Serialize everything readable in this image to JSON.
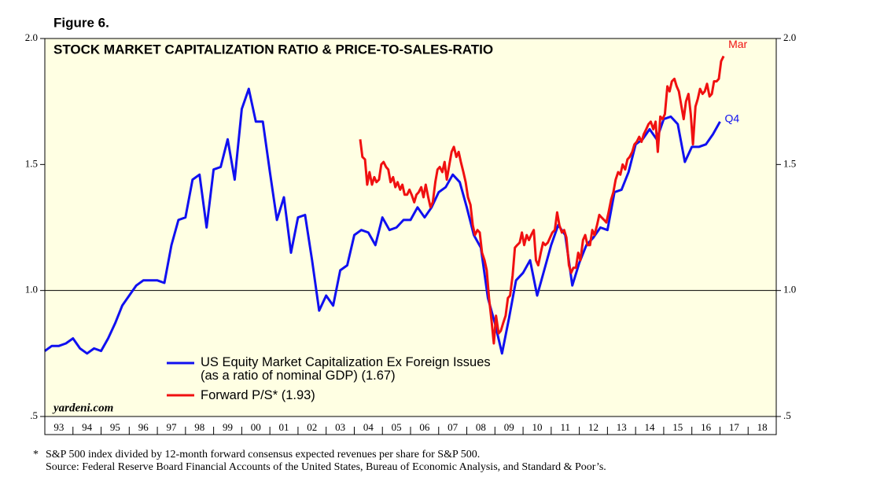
{
  "chart_data": {
    "type": "line",
    "figure_label": "Figure 6.",
    "title": "STOCK MARKET CAPITALIZATION RATIO & PRICE-TO-SALES-RATIO",
    "watermark": "yardeni.com",
    "footnote_marker": "*",
    "footnote": "S&P 500 index divided by 12-month forward consensus expected revenues per share for S&P 500.",
    "source": "Source: Federal Reserve Board Financial Accounts of the United States, Bureau of Economic Analysis, and Standard & Poor’s.",
    "xlim": [
      1993,
      2019
    ],
    "xticks": [
      {
        "value": 1993,
        "label": "93"
      },
      {
        "value": 1994,
        "label": "94"
      },
      {
        "value": 1995,
        "label": "95"
      },
      {
        "value": 1996,
        "label": "96"
      },
      {
        "value": 1997,
        "label": "97"
      },
      {
        "value": 1998,
        "label": "98"
      },
      {
        "value": 1999,
        "label": "99"
      },
      {
        "value": 2000,
        "label": "00"
      },
      {
        "value": 2001,
        "label": "01"
      },
      {
        "value": 2002,
        "label": "02"
      },
      {
        "value": 2003,
        "label": "03"
      },
      {
        "value": 2004,
        "label": "04"
      },
      {
        "value": 2005,
        "label": "05"
      },
      {
        "value": 2006,
        "label": "06"
      },
      {
        "value": 2007,
        "label": "07"
      },
      {
        "value": 2008,
        "label": "08"
      },
      {
        "value": 2009,
        "label": "09"
      },
      {
        "value": 2010,
        "label": "10"
      },
      {
        "value": 2011,
        "label": "11"
      },
      {
        "value": 2012,
        "label": "12"
      },
      {
        "value": 2013,
        "label": "13"
      },
      {
        "value": 2014,
        "label": "14"
      },
      {
        "value": 2015,
        "label": "15"
      },
      {
        "value": 2016,
        "label": "16"
      },
      {
        "value": 2017,
        "label": "17"
      },
      {
        "value": 2018,
        "label": "18"
      }
    ],
    "ylim": [
      0.5,
      2.0
    ],
    "yticks": [
      {
        "value": 2.0,
        "label": "2.0"
      },
      {
        "value": 1.5,
        "label": "1.5"
      },
      {
        "value": 1.0,
        "label": "1.0"
      },
      {
        "value": 0.5,
        "label": ".5"
      }
    ],
    "y2lim": [
      0.5,
      2.0
    ],
    "y2ticks": [
      {
        "value": 2.0,
        "label": "2.0"
      },
      {
        "value": 1.5,
        "label": "1.5"
      },
      {
        "value": 1.0,
        "label": "1.0"
      },
      {
        "value": 0.5,
        "label": ".5"
      }
    ],
    "reference_line": 1.0,
    "background": "#ffffe3",
    "series": [
      {
        "name": "US Equity Market Capitalization Ex Foreign Issues\n(as a ratio of nominal GDP) (1.67)",
        "end_label": "Q4",
        "color": "#1010f0",
        "x": [
          1993,
          1993.25,
          1993.5,
          1993.75,
          1994,
          1994.25,
          1994.5,
          1994.75,
          1995,
          1995.25,
          1995.5,
          1995.75,
          1996,
          1996.25,
          1996.5,
          1996.75,
          1997,
          1997.25,
          1997.5,
          1997.75,
          1998,
          1998.25,
          1998.5,
          1998.75,
          1999,
          1999.25,
          1999.5,
          1999.75,
          2000,
          2000.25,
          2000.5,
          2000.75,
          2001,
          2001.25,
          2001.5,
          2001.75,
          2002,
          2002.25,
          2002.5,
          2002.75,
          2003,
          2003.25,
          2003.5,
          2003.75,
          2004,
          2004.25,
          2004.5,
          2004.75,
          2005,
          2005.25,
          2005.5,
          2005.75,
          2006,
          2006.25,
          2006.5,
          2006.75,
          2007,
          2007.25,
          2007.5,
          2007.75,
          2008,
          2008.25,
          2008.5,
          2008.75,
          2009,
          2009.25,
          2009.5,
          2009.75,
          2010,
          2010.25,
          2010.5,
          2010.75,
          2011,
          2011.25,
          2011.5,
          2011.75,
          2012,
          2012.25,
          2012.5,
          2012.75,
          2013,
          2013.25,
          2013.5,
          2013.75,
          2014,
          2014.25,
          2014.5,
          2014.75,
          2015,
          2015.25,
          2015.5,
          2015.75,
          2016,
          2016.25,
          2016.5,
          2016.75,
          2017
        ],
        "values": [
          0.76,
          0.78,
          0.78,
          0.79,
          0.81,
          0.77,
          0.75,
          0.77,
          0.76,
          0.81,
          0.87,
          0.94,
          0.98,
          1.02,
          1.04,
          1.04,
          1.04,
          1.03,
          1.18,
          1.28,
          1.29,
          1.44,
          1.46,
          1.25,
          1.48,
          1.49,
          1.6,
          1.44,
          1.72,
          1.8,
          1.67,
          1.67,
          1.47,
          1.28,
          1.37,
          1.15,
          1.29,
          1.3,
          1.12,
          0.92,
          0.98,
          0.94,
          1.08,
          1.1,
          1.22,
          1.24,
          1.23,
          1.18,
          1.29,
          1.24,
          1.25,
          1.28,
          1.28,
          1.33,
          1.29,
          1.33,
          1.39,
          1.41,
          1.46,
          1.43,
          1.33,
          1.22,
          1.17,
          0.97,
          0.87,
          0.75,
          0.89,
          1.04,
          1.07,
          1.12,
          0.98,
          1.08,
          1.18,
          1.26,
          1.22,
          1.02,
          1.11,
          1.18,
          1.21,
          1.25,
          1.24,
          1.39,
          1.4,
          1.47,
          1.58,
          1.6,
          1.64,
          1.6,
          1.68,
          1.69,
          1.66,
          1.51,
          1.57,
          1.57,
          1.58,
          1.62,
          1.67
        ]
      },
      {
        "name": "Forward P/S* (1.93)",
        "end_label": "Mar",
        "color": "#f01010",
        "x": [
          2004.21,
          2004.29,
          2004.38,
          2004.46,
          2004.54,
          2004.63,
          2004.71,
          2004.79,
          2004.88,
          2004.96,
          2005.04,
          2005.13,
          2005.21,
          2005.29,
          2005.38,
          2005.46,
          2005.54,
          2005.63,
          2005.71,
          2005.79,
          2005.88,
          2005.96,
          2006.04,
          2006.13,
          2006.21,
          2006.29,
          2006.38,
          2006.46,
          2006.54,
          2006.63,
          2006.71,
          2006.79,
          2006.88,
          2006.96,
          2007.04,
          2007.13,
          2007.21,
          2007.29,
          2007.38,
          2007.46,
          2007.54,
          2007.63,
          2007.71,
          2007.79,
          2007.88,
          2007.96,
          2008.04,
          2008.13,
          2008.21,
          2008.29,
          2008.38,
          2008.46,
          2008.54,
          2008.63,
          2008.71,
          2008.79,
          2008.88,
          2008.96,
          2009.04,
          2009.13,
          2009.21,
          2009.29,
          2009.38,
          2009.46,
          2009.54,
          2009.63,
          2009.71,
          2009.79,
          2009.88,
          2009.96,
          2010.04,
          2010.13,
          2010.21,
          2010.29,
          2010.38,
          2010.46,
          2010.54,
          2010.63,
          2010.71,
          2010.79,
          2010.88,
          2010.96,
          2011.04,
          2011.13,
          2011.21,
          2011.29,
          2011.38,
          2011.46,
          2011.54,
          2011.63,
          2011.71,
          2011.79,
          2011.88,
          2011.96,
          2012.04,
          2012.13,
          2012.21,
          2012.29,
          2012.38,
          2012.46,
          2012.54,
          2012.63,
          2012.71,
          2012.79,
          2012.88,
          2012.96,
          2013.04,
          2013.13,
          2013.21,
          2013.29,
          2013.38,
          2013.46,
          2013.54,
          2013.63,
          2013.71,
          2013.79,
          2013.88,
          2013.96,
          2014.04,
          2014.13,
          2014.21,
          2014.29,
          2014.38,
          2014.46,
          2014.54,
          2014.63,
          2014.71,
          2014.79,
          2014.88,
          2014.96,
          2015.04,
          2015.13,
          2015.21,
          2015.29,
          2015.38,
          2015.46,
          2015.54,
          2015.63,
          2015.71,
          2015.79,
          2015.88,
          2015.96,
          2016.04,
          2016.13,
          2016.21,
          2016.29,
          2016.38,
          2016.46,
          2016.54,
          2016.63,
          2016.71,
          2016.79,
          2016.88,
          2016.96,
          2017.04,
          2017.13
        ],
        "values": [
          1.6,
          1.53,
          1.52,
          1.42,
          1.47,
          1.42,
          1.45,
          1.43,
          1.44,
          1.5,
          1.51,
          1.49,
          1.48,
          1.43,
          1.45,
          1.41,
          1.43,
          1.4,
          1.42,
          1.38,
          1.38,
          1.4,
          1.38,
          1.35,
          1.38,
          1.39,
          1.41,
          1.37,
          1.42,
          1.37,
          1.33,
          1.35,
          1.43,
          1.48,
          1.49,
          1.47,
          1.51,
          1.44,
          1.5,
          1.55,
          1.57,
          1.53,
          1.55,
          1.51,
          1.47,
          1.43,
          1.37,
          1.34,
          1.26,
          1.22,
          1.24,
          1.23,
          1.15,
          1.12,
          1.08,
          0.97,
          0.88,
          0.79,
          0.9,
          0.83,
          0.84,
          0.87,
          0.9,
          0.97,
          0.98,
          1.06,
          1.17,
          1.18,
          1.19,
          1.23,
          1.18,
          1.22,
          1.2,
          1.22,
          1.24,
          1.12,
          1.1,
          1.15,
          1.19,
          1.18,
          1.19,
          1.21,
          1.23,
          1.24,
          1.31,
          1.26,
          1.23,
          1.24,
          1.21,
          1.1,
          1.07,
          1.09,
          1.09,
          1.15,
          1.12,
          1.2,
          1.22,
          1.18,
          1.18,
          1.24,
          1.22,
          1.26,
          1.3,
          1.29,
          1.28,
          1.27,
          1.31,
          1.36,
          1.39,
          1.44,
          1.47,
          1.46,
          1.5,
          1.48,
          1.52,
          1.53,
          1.55,
          1.58,
          1.59,
          1.61,
          1.59,
          1.62,
          1.64,
          1.66,
          1.67,
          1.64,
          1.67,
          1.55,
          1.69,
          1.68,
          1.7,
          1.81,
          1.79,
          1.83,
          1.84,
          1.81,
          1.79,
          1.73,
          1.68,
          1.75,
          1.78,
          1.7,
          1.58,
          1.73,
          1.76,
          1.8,
          1.78,
          1.79,
          1.82,
          1.77,
          1.78,
          1.83,
          1.83,
          1.84,
          1.91,
          1.93
        ]
      }
    ]
  }
}
